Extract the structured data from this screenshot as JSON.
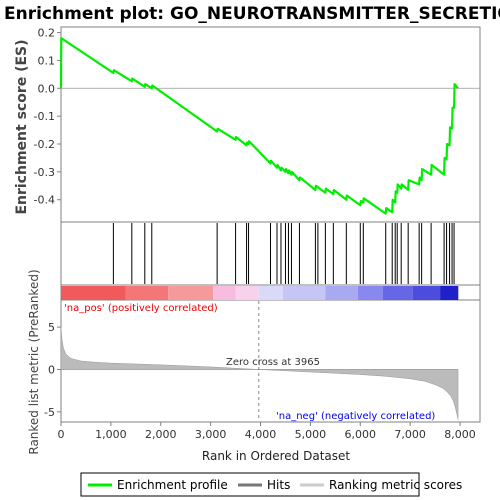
{
  "chart_data": {
    "type": "line",
    "title": "Enrichment plot: GO_NEUROTRANSMITTER_SECRETION",
    "xlabel": "Rank in Ordered Dataset",
    "ylabel_top": "Enrichment score (ES)",
    "ylabel_bottom": "Ranked list metric (PreRanked)",
    "xlim": [
      0,
      8400
    ],
    "x_ticks": [
      0,
      1000,
      2000,
      3000,
      4000,
      5000,
      6000,
      7000,
      8000
    ],
    "x_tick_labels": [
      "0",
      "1,000",
      "2,000",
      "3,000",
      "4,000",
      "5,000",
      "6,000",
      "7,000",
      "8,000"
    ],
    "es_ylim": [
      -0.48,
      0.22
    ],
    "es_ticks": [
      0.2,
      0.1,
      0.0,
      -0.1,
      -0.2,
      -0.3,
      -0.4
    ],
    "es_tick_labels": [
      "0.2",
      "0.1",
      "0.0",
      "-0.1",
      "-0.2",
      "-0.3",
      "-0.4"
    ],
    "metric_ylim": [
      -6.2,
      8.2
    ],
    "metric_ticks": [
      5,
      0,
      -5
    ],
    "metric_tick_labels": [
      "5",
      "0",
      "-5"
    ],
    "enrichment_profile": {
      "x": [
        0,
        5,
        1050,
        1060,
        1420,
        1430,
        1680,
        1690,
        1820,
        1830,
        3130,
        3140,
        3500,
        3510,
        3720,
        3730,
        3760,
        3770,
        4200,
        4210,
        4330,
        4340,
        4410,
        4420,
        4500,
        4510,
        4560,
        4570,
        4620,
        4630,
        4780,
        4790,
        5100,
        5110,
        5300,
        5310,
        5460,
        5470,
        5720,
        5730,
        6000,
        6010,
        6060,
        6070,
        6510,
        6520,
        6640,
        6650,
        6700,
        6710,
        6740,
        6750,
        6820,
        6830,
        6960,
        6970,
        7180,
        7190,
        7230,
        7240,
        7420,
        7430,
        7680,
        7690,
        7730,
        7740,
        7790,
        7800,
        7840,
        7850,
        7880,
        7890,
        7960
      ],
      "y": [
        0.0,
        0.18,
        0.055,
        0.065,
        0.025,
        0.035,
        0.005,
        0.015,
        0.0,
        0.01,
        -0.155,
        -0.145,
        -0.185,
        -0.175,
        -0.205,
        -0.195,
        -0.2,
        -0.19,
        -0.27,
        -0.26,
        -0.285,
        -0.275,
        -0.295,
        -0.285,
        -0.3,
        -0.29,
        -0.305,
        -0.295,
        -0.31,
        -0.3,
        -0.33,
        -0.32,
        -0.365,
        -0.35,
        -0.375,
        -0.36,
        -0.38,
        -0.365,
        -0.4,
        -0.385,
        -0.42,
        -0.405,
        -0.41,
        -0.395,
        -0.45,
        -0.43,
        -0.445,
        -0.4,
        -0.41,
        -0.37,
        -0.375,
        -0.345,
        -0.36,
        -0.345,
        -0.365,
        -0.33,
        -0.345,
        -0.32,
        -0.33,
        -0.29,
        -0.31,
        -0.275,
        -0.31,
        -0.25,
        -0.255,
        -0.2,
        -0.205,
        -0.14,
        -0.145,
        -0.07,
        -0.07,
        0.015,
        0.0
      ]
    },
    "hits": [
      1050,
      1420,
      1680,
      1820,
      3130,
      3500,
      3720,
      3760,
      4200,
      4330,
      4410,
      4500,
      4560,
      4620,
      4780,
      5100,
      5150,
      5300,
      5460,
      5720,
      6000,
      6060,
      6510,
      6640,
      6700,
      6740,
      6820,
      6960,
      7180,
      7230,
      7420,
      7680,
      7730,
      7790,
      7840,
      7880
    ],
    "metric_curve": {
      "x": [
        0,
        20,
        50,
        100,
        200,
        400,
        700,
        1000,
        2000,
        3000,
        3965,
        5000,
        6000,
        6500,
        7000,
        7300,
        7500,
        7650,
        7750,
        7820,
        7870,
        7900,
        7930,
        7960
      ],
      "y": [
        5.0,
        3.5,
        2.5,
        1.8,
        1.3,
        1.0,
        0.85,
        0.75,
        0.55,
        0.3,
        0.0,
        -0.3,
        -0.6,
        -0.8,
        -1.1,
        -1.4,
        -1.8,
        -2.2,
        -2.7,
        -3.2,
        -3.8,
        -4.4,
        -5.1,
        -5.9
      ]
    },
    "zero_cross_rank": 3965,
    "annotations": {
      "zero_cross": "Zero cross at 3965",
      "pos_label": "'na_pos' (positively correlated)",
      "neg_label": "'na_neg' (negatively correlated)"
    },
    "legend": {
      "placement": "bottom",
      "entries": [
        "Enrichment profile",
        "Hits",
        "Ranking metric scores"
      ]
    },
    "colors": {
      "profile": "#00ee00",
      "hits": "#000000",
      "metric": "#bbbbbb",
      "pos_text": "#ee0000",
      "neg_text": "#0000ee",
      "zero_line": "#888888",
      "frame": "#808080"
    },
    "heat_bar": [
      {
        "from": 0,
        "to": 1300,
        "color": "#f05a5a"
      },
      {
        "from": 1300,
        "to": 2150,
        "color": "#f47676"
      },
      {
        "from": 2150,
        "to": 3050,
        "color": "#f59a9a"
      },
      {
        "from": 3050,
        "to": 3500,
        "color": "#f7bde0"
      },
      {
        "from": 3500,
        "to": 3965,
        "color": "#f8d2ec"
      },
      {
        "from": 3965,
        "to": 4450,
        "color": "#d9d9f8"
      },
      {
        "from": 4450,
        "to": 5300,
        "color": "#c6c6f6"
      },
      {
        "from": 5300,
        "to": 5950,
        "color": "#a9a9f1"
      },
      {
        "from": 5950,
        "to": 6450,
        "color": "#8888ee"
      },
      {
        "from": 6450,
        "to": 7050,
        "color": "#6666e6"
      },
      {
        "from": 7050,
        "to": 7600,
        "color": "#4c4cdd"
      },
      {
        "from": 7600,
        "to": 7965,
        "color": "#2020c8"
      }
    ]
  }
}
